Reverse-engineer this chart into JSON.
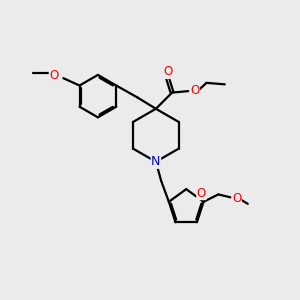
{
  "bg_color": "#ebebeb",
  "bond_color": "#000000",
  "oxygen_color": "#ff0000",
  "nitrogen_color": "#0000cc",
  "line_width": 1.6,
  "figsize": [
    3.0,
    3.0
  ],
  "dpi": 100,
  "xlim": [
    0,
    10
  ],
  "ylim": [
    0,
    10
  ]
}
